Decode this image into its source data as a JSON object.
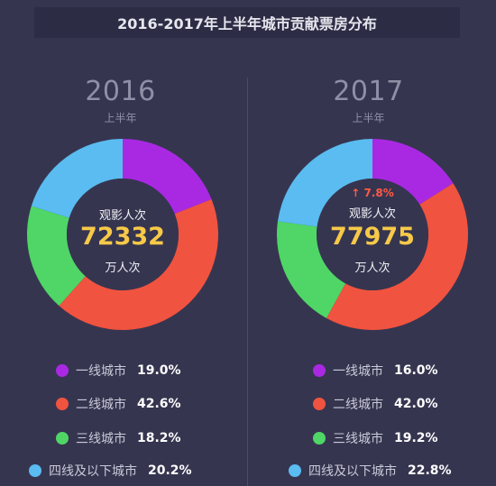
{
  "title": "2016-2017年上半年城市贡献票房分布",
  "chart_data": [
    {
      "type": "pie",
      "year": "2016",
      "period": "上半年",
      "center_label": "观影人次",
      "center_value": "72332",
      "center_unit": "万人次",
      "categories": [
        "一线城市",
        "二线城市",
        "三线城市",
        "四线及以下城市"
      ],
      "values": [
        19.0,
        42.6,
        18.2,
        20.2
      ],
      "value_labels": [
        "19.0%",
        "42.6%",
        "18.2%",
        "20.2%"
      ],
      "colors": [
        "#a929e3",
        "#f0533f",
        "#4fd666",
        "#5abcf0"
      ]
    },
    {
      "type": "pie",
      "year": "2017",
      "period": "上半年",
      "growth": "7.8%",
      "center_label": "观影人次",
      "center_value": "77975",
      "center_unit": "万人次",
      "categories": [
        "一线城市",
        "二线城市",
        "三线城市",
        "四线及以下城市"
      ],
      "values": [
        16.0,
        42.0,
        19.2,
        22.8
      ],
      "value_labels": [
        "16.0%",
        "42.0%",
        "19.2%",
        "22.8%"
      ],
      "colors": [
        "#a929e3",
        "#f0533f",
        "#4fd666",
        "#5abcf0"
      ]
    }
  ]
}
